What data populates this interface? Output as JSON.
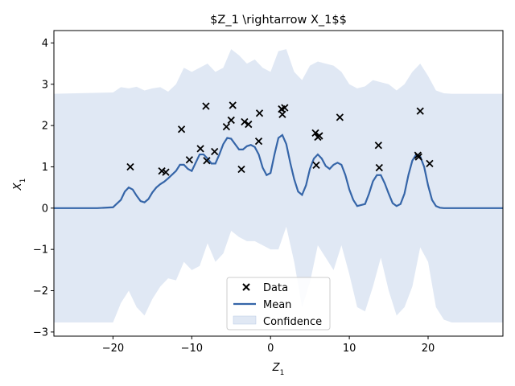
{
  "chart_data": {
    "type": "line",
    "title": "$Z_1 \\rightarrow X_1$$",
    "xlabel_base": "Z",
    "xlabel_sub": "1",
    "ylabel_base": "X",
    "ylabel_sub": "1",
    "xlim": [
      -27.5,
      29.5
    ],
    "ylim": [
      -3.1,
      4.3
    ],
    "xticks": [
      -20,
      -10,
      0,
      10,
      20
    ],
    "yticks": [
      -3,
      -2,
      -1,
      0,
      1,
      2,
      3,
      4
    ],
    "xtick_labels": [
      "−20",
      "−10",
      "0",
      "10",
      "20"
    ],
    "ytick_labels": [
      "−3",
      "−2",
      "−1",
      "0",
      "1",
      "2",
      "3",
      "4"
    ],
    "grid": false,
    "legend_position": "lower-center",
    "legend": {
      "data": "Data",
      "mean": "Mean",
      "confidence": "Confidence"
    },
    "colors": {
      "mean": "#3565a8",
      "confidence": "#c6d5eb",
      "data": "#000000"
    },
    "data_points": [
      {
        "x": -17.8,
        "y": 1.0
      },
      {
        "x": -13.8,
        "y": 0.9
      },
      {
        "x": -13.3,
        "y": 0.87
      },
      {
        "x": -11.3,
        "y": 1.91
      },
      {
        "x": -10.3,
        "y": 1.17
      },
      {
        "x": -8.9,
        "y": 1.44
      },
      {
        "x": -8.2,
        "y": 2.47
      },
      {
        "x": -8.1,
        "y": 1.15
      },
      {
        "x": -7.1,
        "y": 1.37
      },
      {
        "x": -5.6,
        "y": 1.97
      },
      {
        "x": -5.0,
        "y": 2.13
      },
      {
        "x": -4.8,
        "y": 2.49
      },
      {
        "x": -3.7,
        "y": 0.94
      },
      {
        "x": -3.3,
        "y": 2.09
      },
      {
        "x": -2.8,
        "y": 2.03
      },
      {
        "x": -1.5,
        "y": 1.62
      },
      {
        "x": -1.4,
        "y": 2.3
      },
      {
        "x": 1.4,
        "y": 2.4
      },
      {
        "x": 1.5,
        "y": 2.27
      },
      {
        "x": 1.8,
        "y": 2.43
      },
      {
        "x": 5.7,
        "y": 1.82
      },
      {
        "x": 5.8,
        "y": 1.04
      },
      {
        "x": 6.0,
        "y": 1.72
      },
      {
        "x": 6.2,
        "y": 1.75
      },
      {
        "x": 8.8,
        "y": 2.2
      },
      {
        "x": 13.7,
        "y": 1.52
      },
      {
        "x": 13.8,
        "y": 0.98
      },
      {
        "x": 18.7,
        "y": 1.28
      },
      {
        "x": 18.8,
        "y": 1.24
      },
      {
        "x": 19.0,
        "y": 2.35
      },
      {
        "x": 20.2,
        "y": 1.08
      }
    ],
    "mean": {
      "x": [
        -27.5,
        -22,
        -20,
        -19,
        -18.5,
        -18,
        -17.5,
        -17,
        -16.5,
        -16,
        -15.5,
        -15,
        -14.5,
        -14,
        -13.5,
        -13,
        -12,
        -11.5,
        -11,
        -10.5,
        -10,
        -9.5,
        -9,
        -8.5,
        -8,
        -7.5,
        -7,
        -6.5,
        -6,
        -5.5,
        -5,
        -4.5,
        -4,
        -3.5,
        -3,
        -2.5,
        -2,
        -1.5,
        -1,
        -0.5,
        0,
        0.5,
        1,
        1.5,
        2,
        2.5,
        3,
        3.5,
        4,
        4.5,
        5,
        5.5,
        6,
        6.5,
        7,
        7.5,
        8,
        8.5,
        9,
        9.5,
        10,
        10.5,
        11,
        12,
        12.5,
        13,
        13.5,
        14,
        14.5,
        15,
        15.5,
        16,
        16.5,
        17,
        17.5,
        18,
        18.5,
        19,
        19.5,
        20,
        20.5,
        21,
        21.5,
        22,
        23,
        24,
        29.5
      ],
      "y": [
        0,
        0,
        0.02,
        0.2,
        0.4,
        0.5,
        0.45,
        0.3,
        0.17,
        0.14,
        0.22,
        0.38,
        0.5,
        0.58,
        0.64,
        0.72,
        0.9,
        1.05,
        1.05,
        0.95,
        0.9,
        1.1,
        1.3,
        1.3,
        1.2,
        1.08,
        1.08,
        1.3,
        1.55,
        1.7,
        1.68,
        1.55,
        1.42,
        1.42,
        1.5,
        1.53,
        1.48,
        1.3,
        0.98,
        0.8,
        0.85,
        1.3,
        1.7,
        1.77,
        1.55,
        1.1,
        0.7,
        0.4,
        0.32,
        0.55,
        0.95,
        1.2,
        1.3,
        1.2,
        1.02,
        0.95,
        1.05,
        1.1,
        1.05,
        0.8,
        0.45,
        0.2,
        0.05,
        0.1,
        0.35,
        0.65,
        0.8,
        0.8,
        0.6,
        0.35,
        0.12,
        0.05,
        0.1,
        0.35,
        0.8,
        1.15,
        1.3,
        1.25,
        1.0,
        0.55,
        0.2,
        0.05,
        0.01,
        0,
        0,
        0,
        0
      ]
    },
    "confidence": {
      "x": [
        -27.5,
        -20,
        -19,
        -18,
        -17,
        -16,
        -15,
        -14,
        -13,
        -12,
        -11,
        -10,
        -9,
        -8,
        -7,
        -6,
        -5,
        -4,
        -3,
        -2,
        -1,
        0,
        1,
        2,
        3,
        4,
        5,
        6,
        7,
        8,
        9,
        10,
        11,
        12,
        13,
        14,
        15,
        16,
        17,
        18,
        19,
        20,
        21,
        22,
        23,
        24,
        29.5
      ],
      "upper": [
        2.77,
        2.8,
        2.93,
        2.9,
        2.94,
        2.85,
        2.9,
        2.93,
        2.82,
        3.0,
        3.4,
        3.3,
        3.4,
        3.5,
        3.3,
        3.4,
        3.85,
        3.7,
        3.5,
        3.6,
        3.4,
        3.3,
        3.8,
        3.85,
        3.3,
        3.1,
        3.45,
        3.55,
        3.5,
        3.45,
        3.3,
        3.0,
        2.9,
        2.95,
        3.1,
        3.05,
        3.0,
        2.85,
        3.0,
        3.3,
        3.5,
        3.2,
        2.85,
        2.78,
        2.77,
        2.77,
        2.77
      ],
      "lower": [
        -2.77,
        -2.77,
        -2.3,
        -2.0,
        -2.4,
        -2.6,
        -2.2,
        -1.9,
        -1.7,
        -1.75,
        -1.3,
        -1.5,
        -1.4,
        -0.85,
        -1.3,
        -1.1,
        -0.55,
        -0.7,
        -0.8,
        -0.8,
        -0.9,
        -1.0,
        -1.0,
        -0.45,
        -1.3,
        -2.4,
        -1.8,
        -0.9,
        -1.2,
        -1.5,
        -0.9,
        -1.6,
        -2.4,
        -2.5,
        -1.9,
        -1.2,
        -2.0,
        -2.6,
        -2.4,
        -1.9,
        -0.95,
        -1.3,
        -2.4,
        -2.7,
        -2.77,
        -2.77,
        -2.77
      ]
    }
  }
}
